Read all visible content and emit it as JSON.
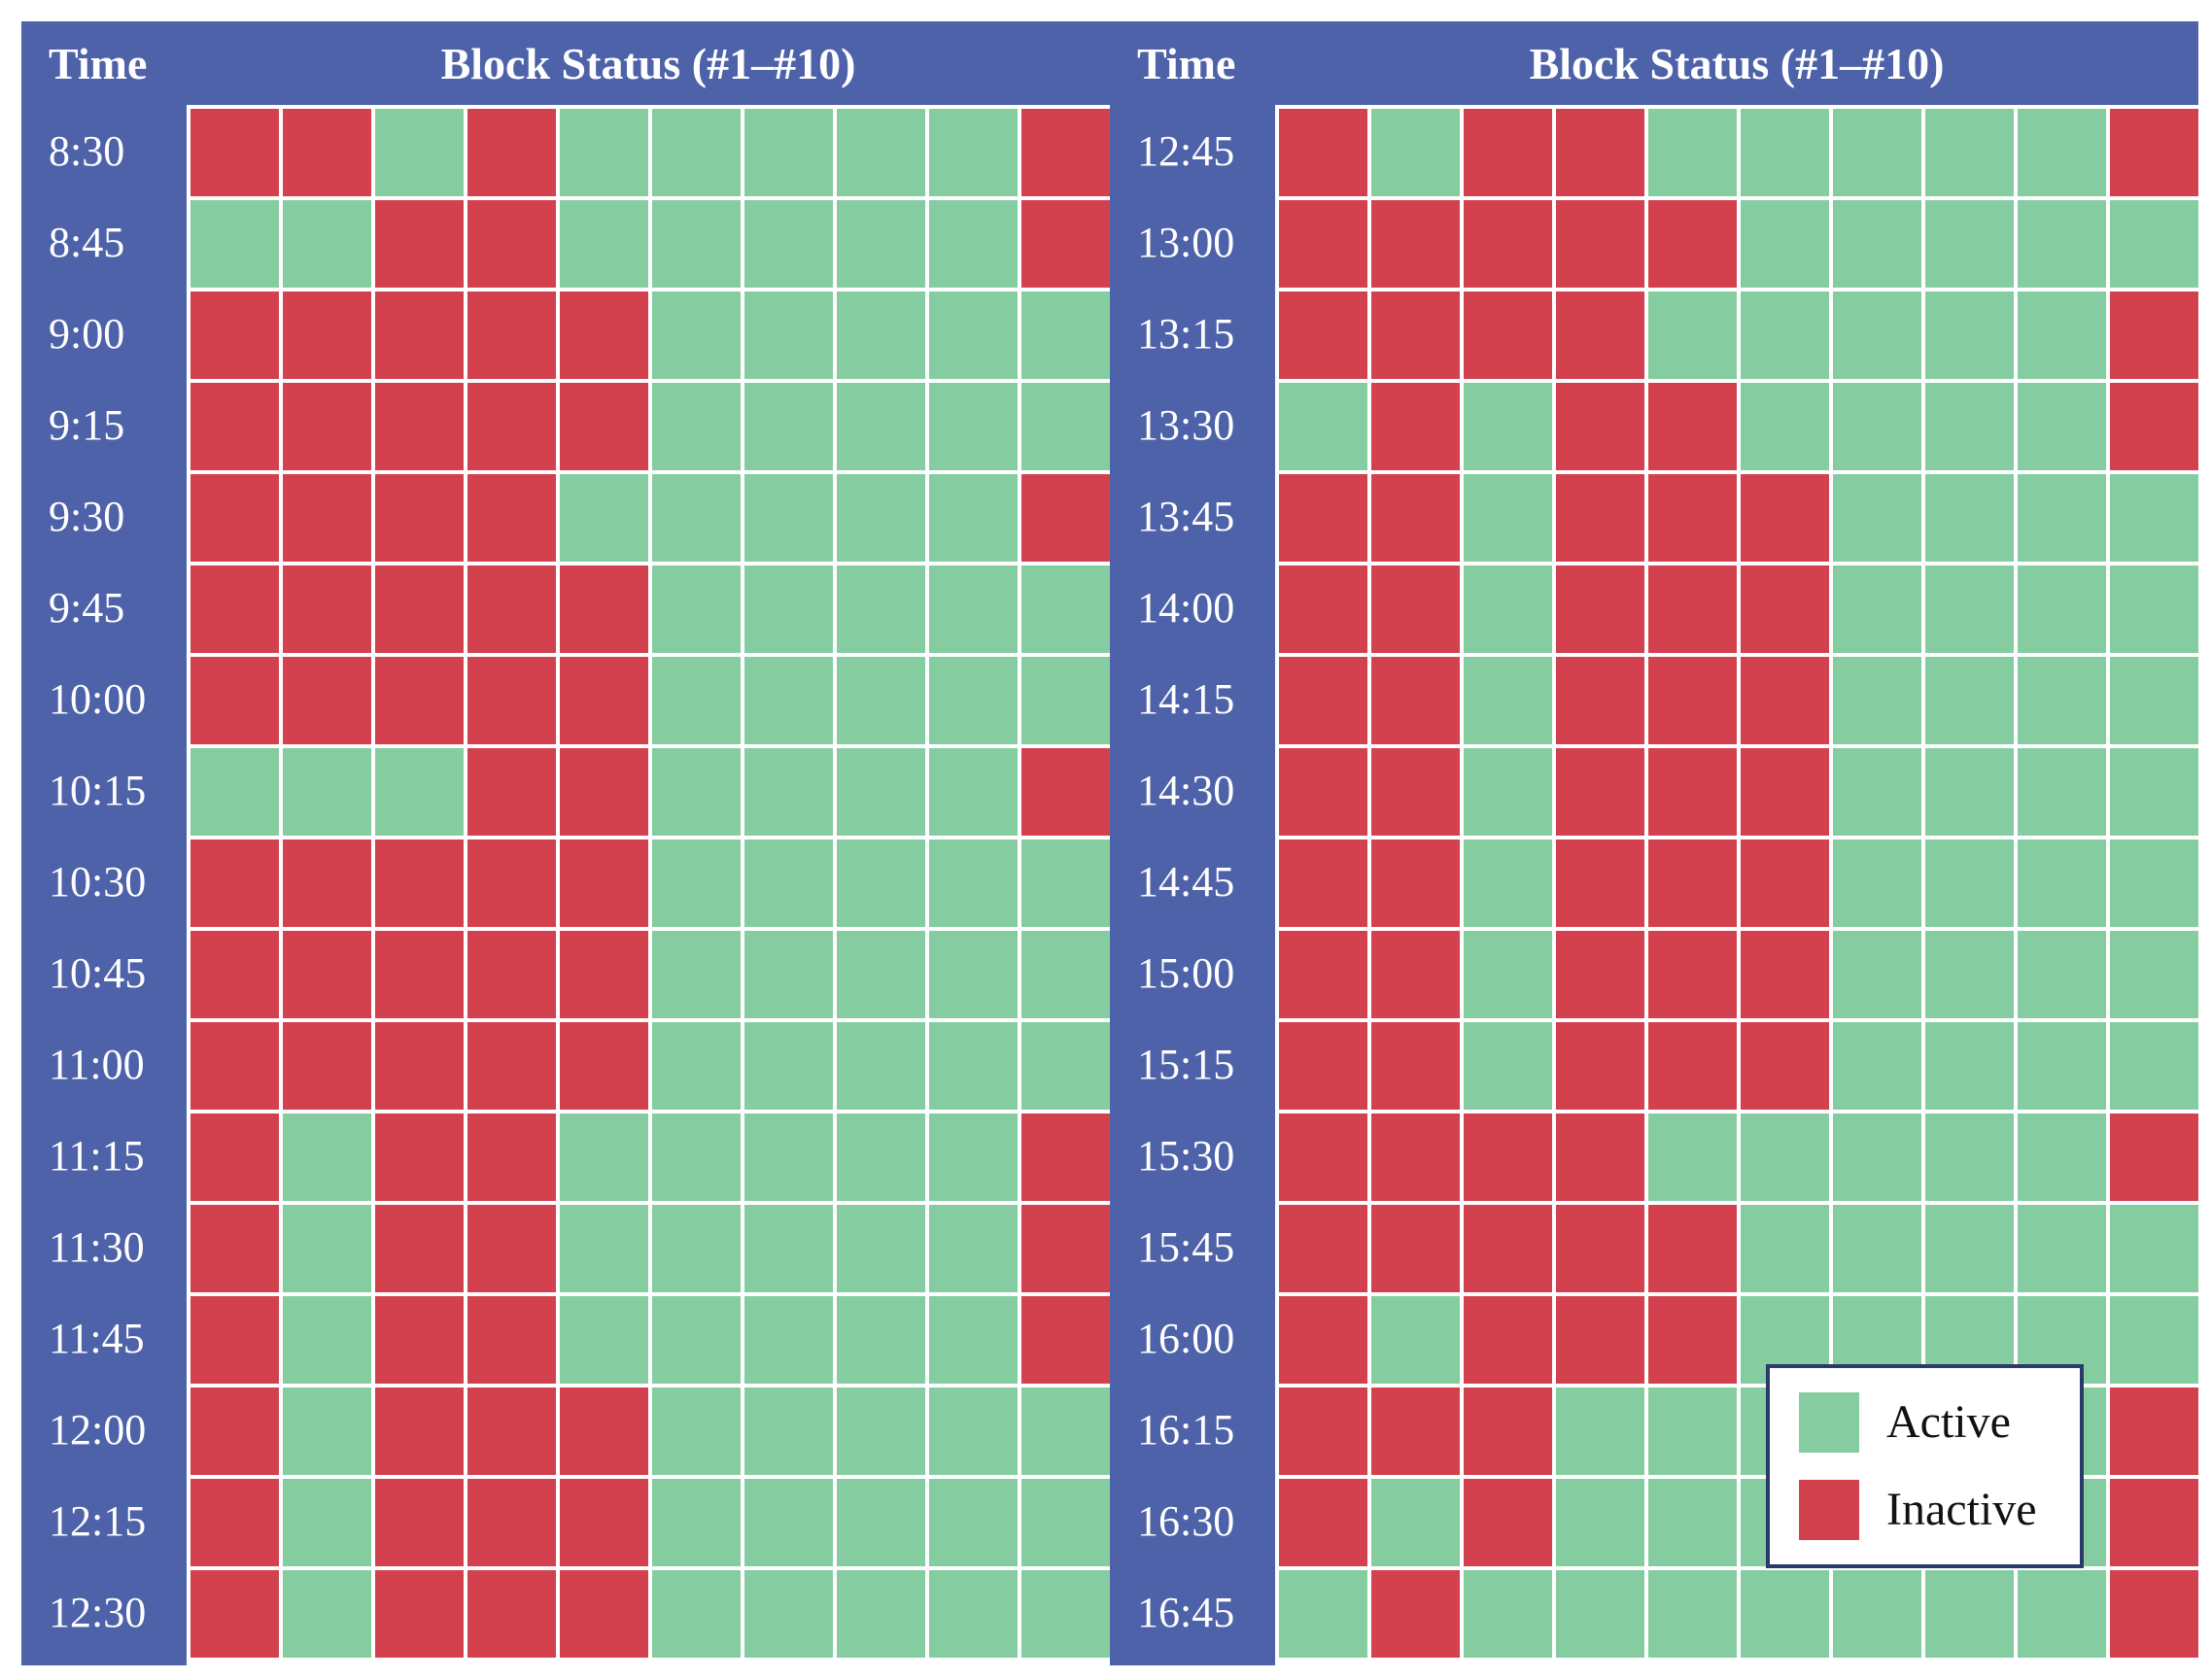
{
  "chart_data": {
    "type": "heatmap",
    "title": "Block Status (#1–#10)",
    "columns_per_row": 10,
    "cell_codes": {
      "A": "Active",
      "I": "Inactive"
    },
    "colors": {
      "header_blue": "#4E62A9",
      "active_green": "#85CDA1",
      "inactive_red": "#D3414F",
      "legend_border_navy": "#2B3B69",
      "gridline_white": "#FFFFFF",
      "header_text": "#FFFFFF",
      "legend_text": "#111111"
    },
    "legend": {
      "position": "overlay-bottom-right-of-right-grid",
      "items": [
        {
          "label": "Active",
          "code": "A",
          "color": "#85CDA1"
        },
        {
          "label": "Inactive",
          "code": "I",
          "color": "#D3414F"
        }
      ]
    },
    "panels": [
      {
        "time_header": "Time",
        "status_header": "Block Status (#1–#10)",
        "rows": [
          {
            "time": "8:30",
            "cells": "IIAIAAAAAI"
          },
          {
            "time": "8:45",
            "cells": "AAIIAAAAAI"
          },
          {
            "time": "9:00",
            "cells": "IIIIIAAAAA"
          },
          {
            "time": "9:15",
            "cells": "IIIIIAAAAA"
          },
          {
            "time": "9:30",
            "cells": "IIIIAAAAAI"
          },
          {
            "time": "9:45",
            "cells": "IIIIIAAAAA"
          },
          {
            "time": "10:00",
            "cells": "IIIIIAAAAA"
          },
          {
            "time": "10:15",
            "cells": "AAAIIAAAAI"
          },
          {
            "time": "10:30",
            "cells": "IIIIIAAAAA"
          },
          {
            "time": "10:45",
            "cells": "IIIIIAAAAA"
          },
          {
            "time": "11:00",
            "cells": "IIIIIAAAAA"
          },
          {
            "time": "11:15",
            "cells": "IAIIAAAAAI"
          },
          {
            "time": "11:30",
            "cells": "IAIIAAAAAI"
          },
          {
            "time": "11:45",
            "cells": "IAIIAAAAAI"
          },
          {
            "time": "12:00",
            "cells": "IAIIIAAAAA"
          },
          {
            "time": "12:15",
            "cells": "IAIIIAAAAA"
          },
          {
            "time": "12:30",
            "cells": "IAIIIAAAAA"
          }
        ]
      },
      {
        "time_header": "Time",
        "status_header": "Block Status (#1–#10)",
        "rows": [
          {
            "time": "12:45",
            "cells": "IAIIAAAAAI"
          },
          {
            "time": "13:00",
            "cells": "IIIIIAAAAA"
          },
          {
            "time": "13:15",
            "cells": "IIIIAAAAAI"
          },
          {
            "time": "13:30",
            "cells": "AIAIIAAAAI"
          },
          {
            "time": "13:45",
            "cells": "IIAIIIAAAA"
          },
          {
            "time": "14:00",
            "cells": "IIAIIIAAAA"
          },
          {
            "time": "14:15",
            "cells": "IIAIIIAAAA"
          },
          {
            "time": "14:30",
            "cells": "IIAIIIAAAA"
          },
          {
            "time": "14:45",
            "cells": "IIAIIIAAAA"
          },
          {
            "time": "15:00",
            "cells": "IIAIIIAAAA"
          },
          {
            "time": "15:15",
            "cells": "IIAIIIAAAA"
          },
          {
            "time": "15:30",
            "cells": "IIIIAAAAAI"
          },
          {
            "time": "15:45",
            "cells": "IIIIIAAAAA"
          },
          {
            "time": "16:00",
            "cells": "IAIIIAAAAA"
          },
          {
            "time": "16:15",
            "cells": "IIIAAAAAAI"
          },
          {
            "time": "16:30",
            "cells": "IAIAAAAAAI"
          },
          {
            "time": "16:45",
            "cells": "AIAAAAAAAI"
          }
        ]
      }
    ]
  }
}
